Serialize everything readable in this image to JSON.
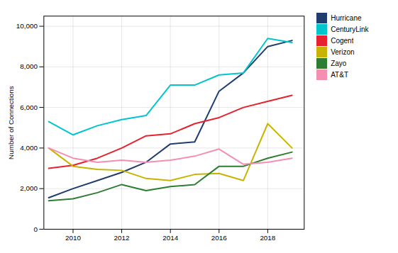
{
  "chart_data": {
    "type": "line",
    "ylabel": "Number of Connections",
    "x": [
      2009,
      2010,
      2011,
      2012,
      2013,
      2014,
      2015,
      2016,
      2017,
      2018,
      2019
    ],
    "series": [
      {
        "name": "Hurricane",
        "color": "#1f3d6e",
        "values": [
          1550,
          2000,
          2400,
          2800,
          3300,
          4200,
          4300,
          6800,
          7700,
          9000,
          9300
        ]
      },
      {
        "name": "CenturyLink",
        "color": "#00c5cd",
        "values": [
          5300,
          4650,
          5100,
          5400,
          5600,
          7100,
          7100,
          7600,
          7700,
          9400,
          9200
        ]
      },
      {
        "name": "Cogent",
        "color": "#e8212e",
        "values": [
          3000,
          3150,
          3500,
          4000,
          4600,
          4700,
          5200,
          5500,
          6000,
          6300,
          6600
        ]
      },
      {
        "name": "Verizon",
        "color": "#c8b400",
        "values": [
          4000,
          3100,
          2950,
          2900,
          2500,
          2400,
          2700,
          2750,
          2400,
          5200,
          4000
        ]
      },
      {
        "name": "Zayo",
        "color": "#2e7d32",
        "values": [
          1400,
          1500,
          1800,
          2200,
          1900,
          2100,
          2200,
          3100,
          3100,
          3500,
          3800
        ]
      },
      {
        "name": "AT&T",
        "color": "#f48fb1",
        "values": [
          4000,
          3500,
          3300,
          3400,
          3300,
          3400,
          3600,
          3950,
          3200,
          3300,
          3500
        ]
      }
    ],
    "xlim": [
      2008.8,
      2019.5
    ],
    "xticks": [
      2010,
      2012,
      2014,
      2016,
      2018
    ],
    "ylim": [
      0,
      10500
    ],
    "yticks": [
      0,
      {
        "value": 2000,
        "label": "2,000"
      },
      {
        "value": 4000,
        "label": "4,000"
      },
      {
        "value": 6000,
        "label": "6,000"
      },
      {
        "value": 8000,
        "label": "8,000"
      },
      {
        "value": 10000,
        "label": "10,000"
      }
    ],
    "grid": true,
    "legend": "upper right"
  }
}
